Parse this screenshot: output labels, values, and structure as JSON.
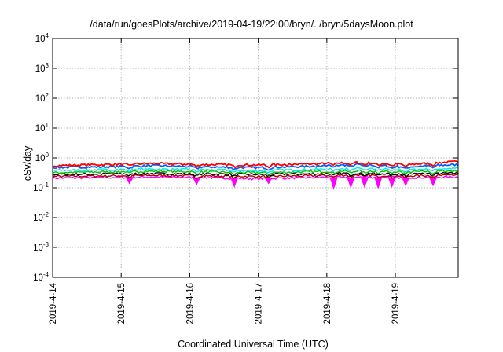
{
  "chart_data": {
    "type": "area",
    "title": "/data/run/goesPlots/archive/2019-04-19/22:00/bryn/../bryn/5daysMoon.plot",
    "xlabel": "Coordinated Universal Time (UTC)",
    "ylabel": "cSv/day",
    "yscale": "log",
    "ylim": [
      0.0001,
      10000
    ],
    "y_tick_base": "10",
    "y_tick_exponents": [
      "-4",
      "-3",
      "-2",
      "-1",
      "0",
      "1",
      "2",
      "3",
      "4"
    ],
    "xlim": [
      "2019-04-14",
      "2019-04-19 22:00"
    ],
    "x_ticks": [
      "2019-4-14",
      "2019-4-15",
      "2019-4-16",
      "2019-4-17",
      "2019-4-18",
      "2019-4-19"
    ],
    "grid": true,
    "colors": {
      "red": "#ff0000",
      "blue": "#0060ff",
      "cyan": "#00e8e8",
      "green": "#00c000",
      "black": "#000000",
      "darkred": "#b00000",
      "magenta": "#ff00ff",
      "grid": "#b0b0b0"
    },
    "series": [
      {
        "color": "red",
        "level": 0.62,
        "values_approx": [
          0.55,
          0.6,
          0.65,
          0.6,
          0.58,
          0.62,
          0.7,
          0.6,
          0.75
        ]
      },
      {
        "color": "blue",
        "level": 0.52,
        "values_approx": [
          0.48,
          0.5,
          0.55,
          0.5,
          0.47,
          0.52,
          0.6,
          0.5,
          0.6
        ]
      },
      {
        "color": "cyan",
        "level": 0.4,
        "values_approx": [
          0.38,
          0.4,
          0.42,
          0.4,
          0.37,
          0.4,
          0.45,
          0.4,
          0.45
        ]
      },
      {
        "color": "green",
        "level": 0.34,
        "values_approx": [
          0.32,
          0.34,
          0.36,
          0.34,
          0.32,
          0.34,
          0.37,
          0.34,
          0.37
        ]
      },
      {
        "color": "black",
        "level": 0.29,
        "values_approx": [
          0.28,
          0.29,
          0.3,
          0.29,
          0.28,
          0.29,
          0.31,
          0.29,
          0.31
        ]
      },
      {
        "color": "darkred",
        "level": 0.25,
        "values_approx": [
          0.24,
          0.25,
          0.26,
          0.25,
          0.24,
          0.25,
          0.27,
          0.25,
          0.27
        ]
      },
      {
        "color": "magenta",
        "level": 0.22,
        "values_approx": [
          0.21,
          0.22,
          0.23,
          0.22,
          0.2,
          0.22,
          0.23,
          0.22,
          0.23
        ]
      }
    ],
    "dips": [
      {
        "day": 1.12,
        "min": 0.13
      },
      {
        "day": 2.1,
        "min": 0.12
      },
      {
        "day": 2.65,
        "min": 0.1
      },
      {
        "day": 3.15,
        "min": 0.13
      },
      {
        "day": 4.1,
        "min": 0.085
      },
      {
        "day": 4.35,
        "min": 0.095
      },
      {
        "day": 4.55,
        "min": 0.1
      },
      {
        "day": 4.75,
        "min": 0.09
      },
      {
        "day": 4.95,
        "min": 0.1
      },
      {
        "day": 5.15,
        "min": 0.11
      },
      {
        "day": 5.55,
        "min": 0.11
      }
    ]
  }
}
